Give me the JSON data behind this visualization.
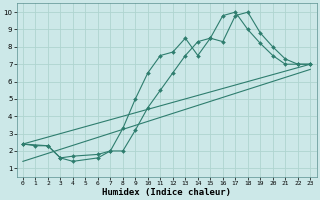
{
  "xlabel": "Humidex (Indice chaleur)",
  "bg_color": "#cce8e8",
  "grid_color": "#afd4d0",
  "line_color": "#2e7d6e",
  "xlim": [
    -0.5,
    23.5
  ],
  "ylim": [
    0.5,
    10.5
  ],
  "xticks": [
    0,
    1,
    2,
    3,
    4,
    5,
    6,
    7,
    8,
    9,
    10,
    11,
    12,
    13,
    14,
    15,
    16,
    17,
    18,
    19,
    20,
    21,
    22,
    23
  ],
  "yticks": [
    1,
    2,
    3,
    4,
    5,
    6,
    7,
    8,
    9,
    10
  ],
  "line1_x": [
    0,
    1,
    2,
    3,
    4,
    6,
    7,
    8,
    9,
    10,
    11,
    12,
    13,
    14,
    15,
    16,
    17,
    18,
    19,
    20,
    21,
    22,
    23
  ],
  "line1_y": [
    2.4,
    2.3,
    2.3,
    1.6,
    1.7,
    1.8,
    2.0,
    3.3,
    5.0,
    6.5,
    7.5,
    7.7,
    8.5,
    7.5,
    8.5,
    9.8,
    10.0,
    9.0,
    8.2,
    7.5,
    7.0,
    7.0,
    7.0
  ],
  "line2_x": [
    0,
    2,
    3,
    4,
    6,
    7,
    8,
    9,
    10,
    11,
    12,
    13,
    14,
    15,
    16,
    17,
    18,
    19,
    20,
    21,
    22,
    23
  ],
  "line2_y": [
    2.4,
    2.3,
    1.6,
    1.4,
    1.6,
    2.0,
    2.0,
    3.2,
    4.5,
    5.5,
    6.5,
    7.5,
    8.3,
    8.5,
    8.3,
    9.8,
    10.0,
    8.8,
    8.0,
    7.3,
    7.0,
    7.0
  ],
  "line3_x": [
    0,
    23
  ],
  "line3_y": [
    2.4,
    7.0
  ],
  "line4_x": [
    0,
    23
  ],
  "line4_y": [
    1.4,
    6.7
  ],
  "marker_size": 2.0,
  "line_width": 0.8,
  "xlabel_fontsize": 6.5,
  "tick_fontsize": 4.5
}
